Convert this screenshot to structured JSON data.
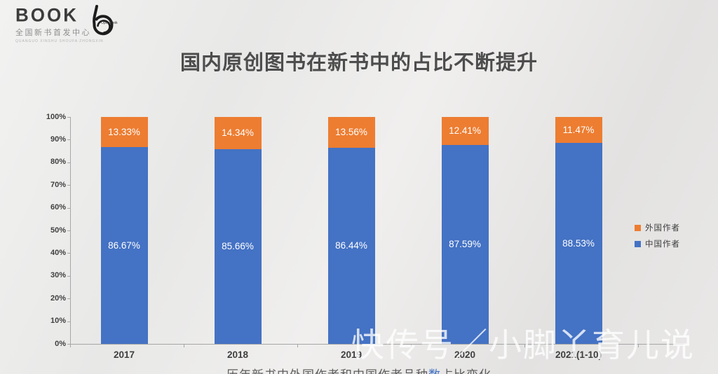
{
  "header": {
    "book_logo": {
      "text": "BOOK",
      "subtitle": "全国新书首发中心",
      "tagline": "QUANGUO XINSHU SHOUFA ZHONGXIN"
    },
    "openbook_logo": {
      "label": "OpenBook"
    }
  },
  "title": "国内原创图书在新书中的占比不断提升",
  "watermark": "快传号／小脚丫育儿说",
  "caption": {
    "prefix": "历年新书中外国作者和中国作者品种",
    "highlight": "数",
    "suffix": "占比变化"
  },
  "chart_data": {
    "type": "bar",
    "stacked": true,
    "title": "国内原创图书在新书中的占比不断提升",
    "categories": [
      "2017",
      "2018",
      "2019",
      "2020",
      "2021(1-10)"
    ],
    "series": [
      {
        "name": "中国作者",
        "color": "#4472C4",
        "values": [
          86.67,
          85.66,
          86.44,
          87.59,
          88.53
        ]
      },
      {
        "name": "外国作者",
        "color": "#ED7D31",
        "values": [
          13.33,
          14.34,
          13.56,
          12.41,
          11.47
        ]
      }
    ],
    "unit": "%",
    "ylim": [
      0,
      100
    ],
    "y_ticks": [
      "0%",
      "10%",
      "20%",
      "30%",
      "40%",
      "50%",
      "60%",
      "70%",
      "80%",
      "90%",
      "100%"
    ],
    "grid": false,
    "legend_position": "right",
    "value_labels": "inside-center",
    "caption": "历年新书中外国作者和中国作者品种数占比变化"
  }
}
